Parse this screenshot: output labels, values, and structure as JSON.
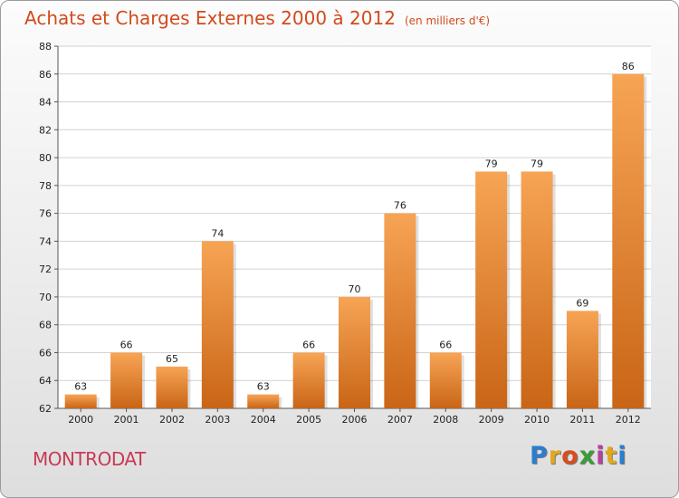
{
  "header": {
    "title": "Achats et Charges Externes 2000 à 2012",
    "unit": "(en milliers d'€)"
  },
  "footer": {
    "commune": "MONTRODAT",
    "brand": "Proxiti",
    "brand_letter_colors": [
      "#2a7ecf",
      "#e2a81f",
      "#d74e1e",
      "#3a9c3a",
      "#b63fa0",
      "#e2a81f",
      "#2a7ecf"
    ]
  },
  "colors": {
    "title": "#d24a1c",
    "commune": "#c83a55",
    "bar_top": "#f7a455",
    "bar_bottom": "#c96516",
    "grid": "#d2d2d2"
  },
  "chart_data": {
    "type": "bar",
    "title": "Achats et Charges Externes 2000 à 2012",
    "subtitle": "(en milliers d'€)",
    "xlabel": "",
    "ylabel": "",
    "categories": [
      "2000",
      "2001",
      "2002",
      "2003",
      "2004",
      "2005",
      "2006",
      "2007",
      "2008",
      "2009",
      "2010",
      "2011",
      "2012"
    ],
    "values": [
      63,
      66,
      65,
      74,
      63,
      66,
      70,
      76,
      66,
      79,
      79,
      69,
      86
    ],
    "ylim": [
      62,
      88
    ],
    "yticks": [
      62,
      64,
      66,
      68,
      70,
      72,
      74,
      76,
      78,
      80,
      82,
      84,
      86,
      88
    ],
    "grid": true,
    "legend": "none"
  }
}
